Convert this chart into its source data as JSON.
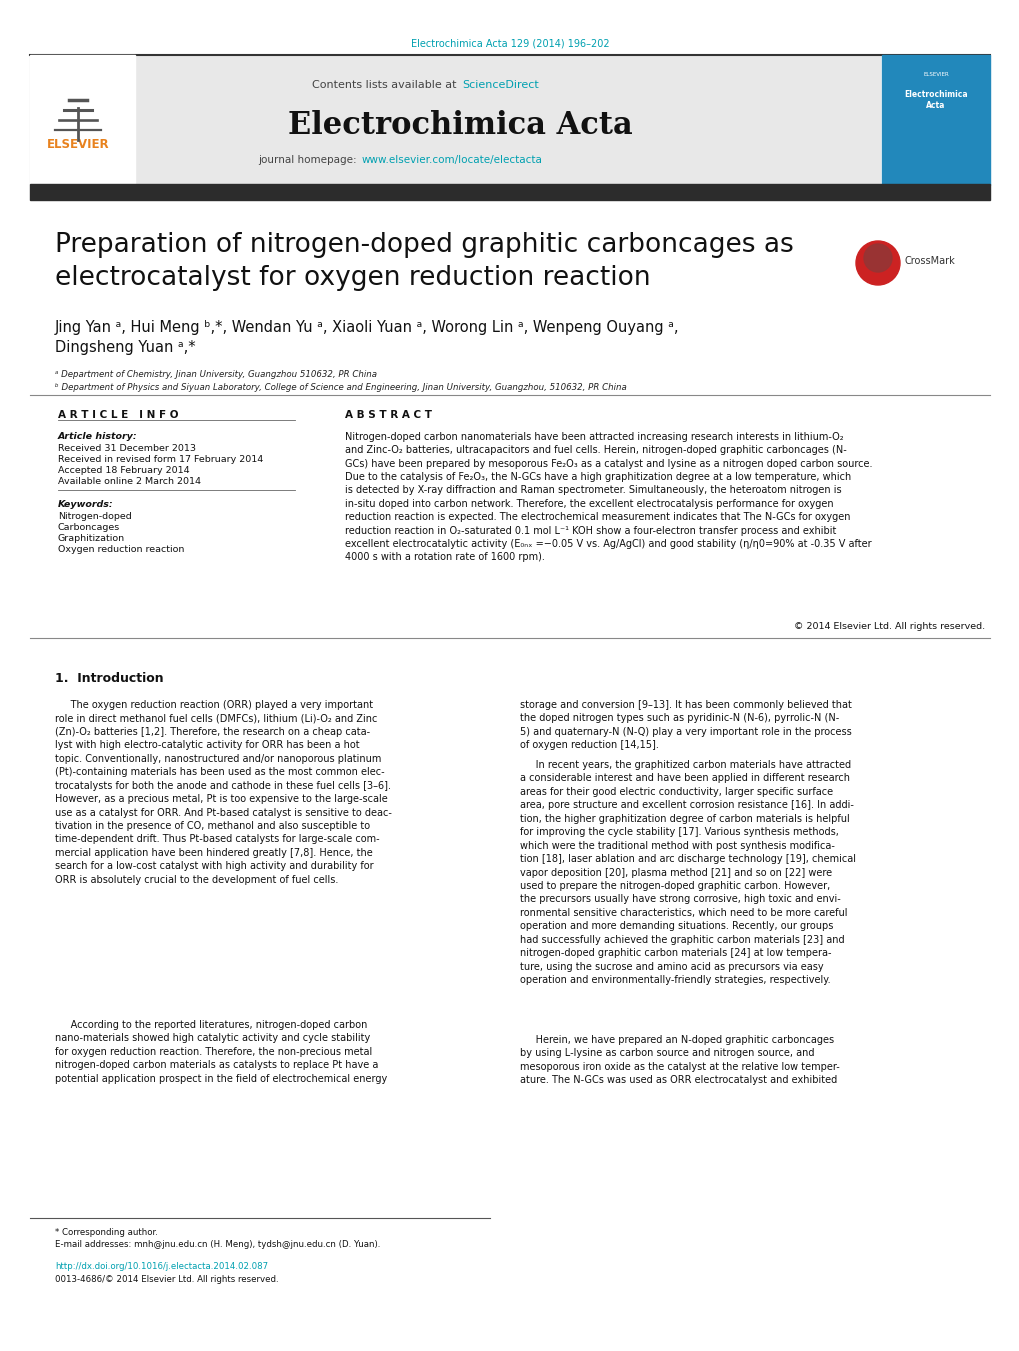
{
  "page_bg": "#ffffff",
  "top_citation": "Electrochimica Acta 129 (2014) 196–202",
  "top_citation_color": "#00a0b0",
  "journal_name": "Electrochimica Acta",
  "contents_text": "Contents lists available at ",
  "sciencedirect_text": "ScienceDirect",
  "sciencedirect_color": "#00a0b0",
  "journal_homepage_text": "journal homepage: ",
  "journal_url": "www.elsevier.com/locate/electacta",
  "journal_url_color": "#00a0b0",
  "header_bg": "#e8e8e8",
  "paper_title": "Preparation of nitrogen-doped graphitic carboncages as\nelectrocatalyst for oxygen reduction reaction",
  "authors_line1": "Jing Yan ᵃ, Hui Meng ᵇ,*, Wendan Yu ᵃ, Xiaoli Yuan ᵃ, Worong Lin ᵃ, Wenpeng Ouyang ᵃ,",
  "authors_line2": "Dingsheng Yuan ᵃ,*",
  "affil_a": "ᵃ Department of Chemistry, Jinan University, Guangzhou 510632, PR China",
  "affil_b": "ᵇ Department of Physics and Siyuan Laboratory, College of Science and Engineering, Jinan University, Guangzhou, 510632, PR China",
  "article_info_header": "A R T I C L E   I N F O",
  "abstract_header": "A B S T R A C T",
  "article_history_label": "Article history:",
  "received_date": "Received 31 December 2013",
  "revised_date": "Received in revised form 17 February 2014",
  "accepted_date": "Accepted 18 February 2014",
  "available_date": "Available online 2 March 2014",
  "keywords_label": "Keywords:",
  "keyword1": "Nitrogen-doped",
  "keyword2": "Carboncages",
  "keyword3": "Graphitization",
  "keyword4": "Oxygen reduction reaction",
  "abstract_text": "Nitrogen-doped carbon nanomaterials have been attracted increasing research interests in lithium-O₂\nand Zinc-O₂ batteries, ultracapacitors and fuel cells. Herein, nitrogen-doped graphitic carboncages (N-\nGCs) have been prepared by mesoporous Fe₂O₃ as a catalyst and lysine as a nitrogen doped carbon source.\nDue to the catalysis of Fe₂O₃, the N-GCs have a high graphitization degree at a low temperature, which\nis detected by X-ray diffraction and Raman spectrometer. Simultaneously, the heteroatom nitrogen is\nin-situ doped into carbon network. Therefore, the excellent electrocatalysis performance for oxygen\nreduction reaction is expected. The electrochemical measurement indicates that The N-GCs for oxygen\nreduction reaction in O₂-saturated 0.1 mol L⁻¹ KOH show a four-electron transfer process and exhibit\nexcellent electrocatalytic activity (E₀ₙₓ =−0.05 V vs. Ag/AgCl) and good stability (η/η0=90% at -0.35 V after\n4000 s with a rotation rate of 1600 rpm).",
  "copyright_text": "© 2014 Elsevier Ltd. All rights reserved.",
  "intro_section": "1.  Introduction",
  "intro_para1": "     The oxygen reduction reaction (ORR) played a very important\nrole in direct methanol fuel cells (DMFCs), lithium (Li)-O₂ and Zinc\n(Zn)-O₂ batteries [1,2]. Therefore, the research on a cheap cata-\nlyst with high electro-catalytic activity for ORR has been a hot\ntopic. Conventionally, nanostructured and/or nanoporous platinum\n(Pt)-containing materials has been used as the most common elec-\ntrocatalysts for both the anode and cathode in these fuel cells [3–6].\nHowever, as a precious metal, Pt is too expensive to the large-scale\nuse as a catalyst for ORR. And Pt-based catalyst is sensitive to deac-\ntivation in the presence of CO, methanol and also susceptible to\ntime-dependent drift. Thus Pt-based catalysts for large-scale com-\nmercial application have been hindered greatly [7,8]. Hence, the\nsearch for a low-cost catalyst with high activity and durability for\nORR is absolutely crucial to the development of fuel cells.",
  "intro_para2": "     According to the reported literatures, nitrogen-doped carbon\nnano-materials showed high catalytic activity and cycle stability\nfor oxygen reduction reaction. Therefore, the non-precious metal\nnitrogen-doped carbon materials as catalysts to replace Pt have a\npotential application prospect in the field of electrochemical energy",
  "intro_right_col1": "storage and conversion [9–13]. It has been commonly believed that\nthe doped nitrogen types such as pyridinic-N (N-6), pyrrolic-N (N-\n5) and quaternary-N (N-Q) play a very important role in the process\nof oxygen reduction [14,15].",
  "intro_right_col2": "     In recent years, the graphitized carbon materials have attracted\na considerable interest and have been applied in different research\nareas for their good electric conductivity, larger specific surface\narea, pore structure and excellent corrosion resistance [16]. In addi-\ntion, the higher graphitization degree of carbon materials is helpful\nfor improving the cycle stability [17]. Various synthesis methods,\nwhich were the traditional method with post synthesis modifica-\ntion [18], laser ablation and arc discharge technology [19], chemical\nvapor deposition [20], plasma method [21] and so on [22] were\nused to prepare the nitrogen-doped graphitic carbon. However,\nthe precursors usually have strong corrosive, high toxic and envi-\nronmental sensitive characteristics, which need to be more careful\noperation and more demanding situations. Recently, our groups\nhad successfully achieved the graphitic carbon materials [23] and\nnitrogen-doped graphitic carbon materials [24] at low tempera-\nture, using the sucrose and amino acid as precursors via easy\noperation and environmentally-friendly strategies, respectively.",
  "intro_right_col3": "     Herein, we have prepared an N-doped graphitic carboncages\nby using L-lysine as carbon source and nitrogen source, and\nmesoporous iron oxide as the catalyst at the relative low temper-\nature. The N-GCs was used as ORR electrocatalyst and exhibited",
  "footer_corresp": "* Corresponding author.",
  "footer_email": "E-mail addresses: mnh@jnu.edu.cn (H. Meng), tydsh@jnu.edu.cn (D. Yuan).",
  "doi_text": "http://dx.doi.org/10.1016/j.electacta.2014.02.087",
  "issn_text": "0013-4686/© 2014 Elsevier Ltd. All rights reserved.",
  "dark_bar_color": "#2c2c2c",
  "elsevier_orange": "#E8821E"
}
